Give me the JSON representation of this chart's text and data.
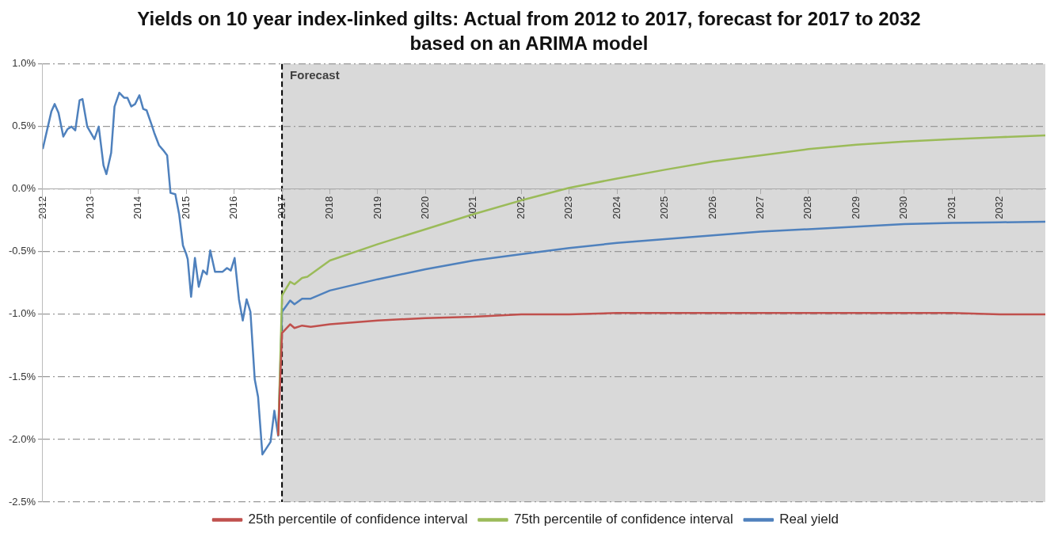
{
  "chart_data": {
    "type": "line",
    "title": "Yields on 10 year index-linked gilts: Actual from 2012 to 2017, forecast  for 2017 to 2032 based on an ARIMA model",
    "xlim": [
      2012,
      2032.95
    ],
    "xticks": [
      2012,
      2013,
      2014,
      2015,
      2016,
      2017,
      2018,
      2019,
      2020,
      2021,
      2022,
      2023,
      2024,
      2025,
      2026,
      2027,
      2028,
      2029,
      2030,
      2031,
      2032
    ],
    "ylim": [
      -2.5,
      1
    ],
    "yticks": [
      {
        "value": -2.5,
        "label": "-2.5%"
      },
      {
        "value": -2,
        "label": "-2.0%"
      },
      {
        "value": -1.5,
        "label": "-1.5%"
      },
      {
        "value": -1,
        "label": "-1.0%"
      },
      {
        "value": -0.5,
        "label": "-0.5%"
      },
      {
        "value": 0,
        "label": "0.0%"
      },
      {
        "value": 0.5,
        "label": "0.5%"
      },
      {
        "value": 1,
        "label": "1.0%"
      }
    ],
    "grid": "y",
    "legend": "bottom",
    "marker": "none",
    "line_style": "solid",
    "bands": [
      {
        "axis": "x",
        "from": 2017,
        "to": 2032.95,
        "label": "Forecast",
        "color": "#d9d9d9"
      }
    ],
    "ref_lines": [
      {
        "axis": "x",
        "value": 2017,
        "label": null,
        "color": "#000000",
        "line_style": "dashed"
      }
    ],
    "series": [
      {
        "name": "25th percentile of confidence interval",
        "color": "#c0504d",
        "x": [
          2016.92,
          2017,
          2017.17,
          2017.26,
          2017.42,
          2017.6,
          2018,
          2019,
          2020,
          2021,
          2022,
          2023,
          2024,
          2025,
          2026,
          2027,
          2028,
          2029,
          2030,
          2031,
          2032,
          2032.95
        ],
        "values": [
          -1.97,
          -1.15,
          -1.08,
          -1.11,
          -1.09,
          -1.1,
          -1.08,
          -1.05,
          -1.03,
          -1.02,
          -1,
          -1,
          -0.99,
          -0.99,
          -0.99,
          -0.99,
          -0.99,
          -0.99,
          -0.99,
          -0.99,
          -1,
          -1
        ]
      },
      {
        "name": "75th percentile of confidence interval",
        "color": "#9bbb59",
        "x": [
          2016.92,
          2017,
          2017.17,
          2017.26,
          2017.42,
          2017.53,
          2018,
          2019,
          2020,
          2021,
          2022,
          2023,
          2024,
          2025,
          2026,
          2027,
          2028,
          2029,
          2030,
          2031,
          2032,
          2032.95
        ],
        "values": [
          -1.97,
          -0.85,
          -0.74,
          -0.76,
          -0.71,
          -0.7,
          -0.57,
          -0.44,
          -0.32,
          -0.2,
          -0.09,
          0.01,
          0.085,
          0.155,
          0.22,
          0.27,
          0.32,
          0.355,
          0.38,
          0.4,
          0.415,
          0.43
        ]
      },
      {
        "name": "Real yield",
        "color": "#4f81bd",
        "x": [
          2012,
          2012.18,
          2012.25,
          2012.33,
          2012.43,
          2012.52,
          2012.6,
          2012.68,
          2012.77,
          2012.83,
          2012.93,
          2013.08,
          2013.17,
          2013.27,
          2013.33,
          2013.43,
          2013.5,
          2013.6,
          2013.7,
          2013.77,
          2013.85,
          2013.93,
          2014.02,
          2014.1,
          2014.17,
          2014.27,
          2014.33,
          2014.43,
          2014.52,
          2014.6,
          2014.67,
          2014.77,
          2014.85,
          2014.93,
          2015,
          2015.03,
          2015.1,
          2015.18,
          2015.26,
          2015.35,
          2015.43,
          2015.5,
          2015.6,
          2015.76,
          2015.85,
          2015.93,
          2016.01,
          2016.1,
          2016.18,
          2016.26,
          2016.34,
          2016.43,
          2016.5,
          2016.59,
          2016.76,
          2016.84,
          2016.92,
          2017,
          2017.17,
          2017.26,
          2017.42,
          2017.6,
          2018,
          2019,
          2020,
          2021,
          2022,
          2023,
          2024,
          2025,
          2026,
          2027,
          2028,
          2029,
          2030,
          2031,
          2032,
          2032.95
        ],
        "values": [
          0.32,
          0.62,
          0.68,
          0.61,
          0.42,
          0.48,
          0.5,
          0.47,
          0.71,
          0.72,
          0.5,
          0.4,
          0.5,
          0.19,
          0.12,
          0.29,
          0.66,
          0.77,
          0.73,
          0.73,
          0.66,
          0.68,
          0.75,
          0.64,
          0.63,
          0.52,
          0.45,
          0.35,
          0.31,
          0.27,
          -0.03,
          -0.04,
          -0.2,
          -0.45,
          -0.52,
          -0.56,
          -0.86,
          -0.55,
          -0.78,
          -0.65,
          -0.68,
          -0.49,
          -0.66,
          -0.66,
          -0.63,
          -0.65,
          -0.55,
          -0.88,
          -1.05,
          -0.88,
          -0.98,
          -1.52,
          -1.66,
          -2.12,
          -2.02,
          -1.77,
          -1.97,
          -0.98,
          -0.89,
          -0.92,
          -0.875,
          -0.875,
          -0.81,
          -0.72,
          -0.64,
          -0.57,
          -0.52,
          -0.47,
          -0.43,
          -0.4,
          -0.37,
          -0.34,
          -0.32,
          -0.3,
          -0.28,
          -0.27,
          -0.265,
          -0.26
        ]
      }
    ]
  }
}
